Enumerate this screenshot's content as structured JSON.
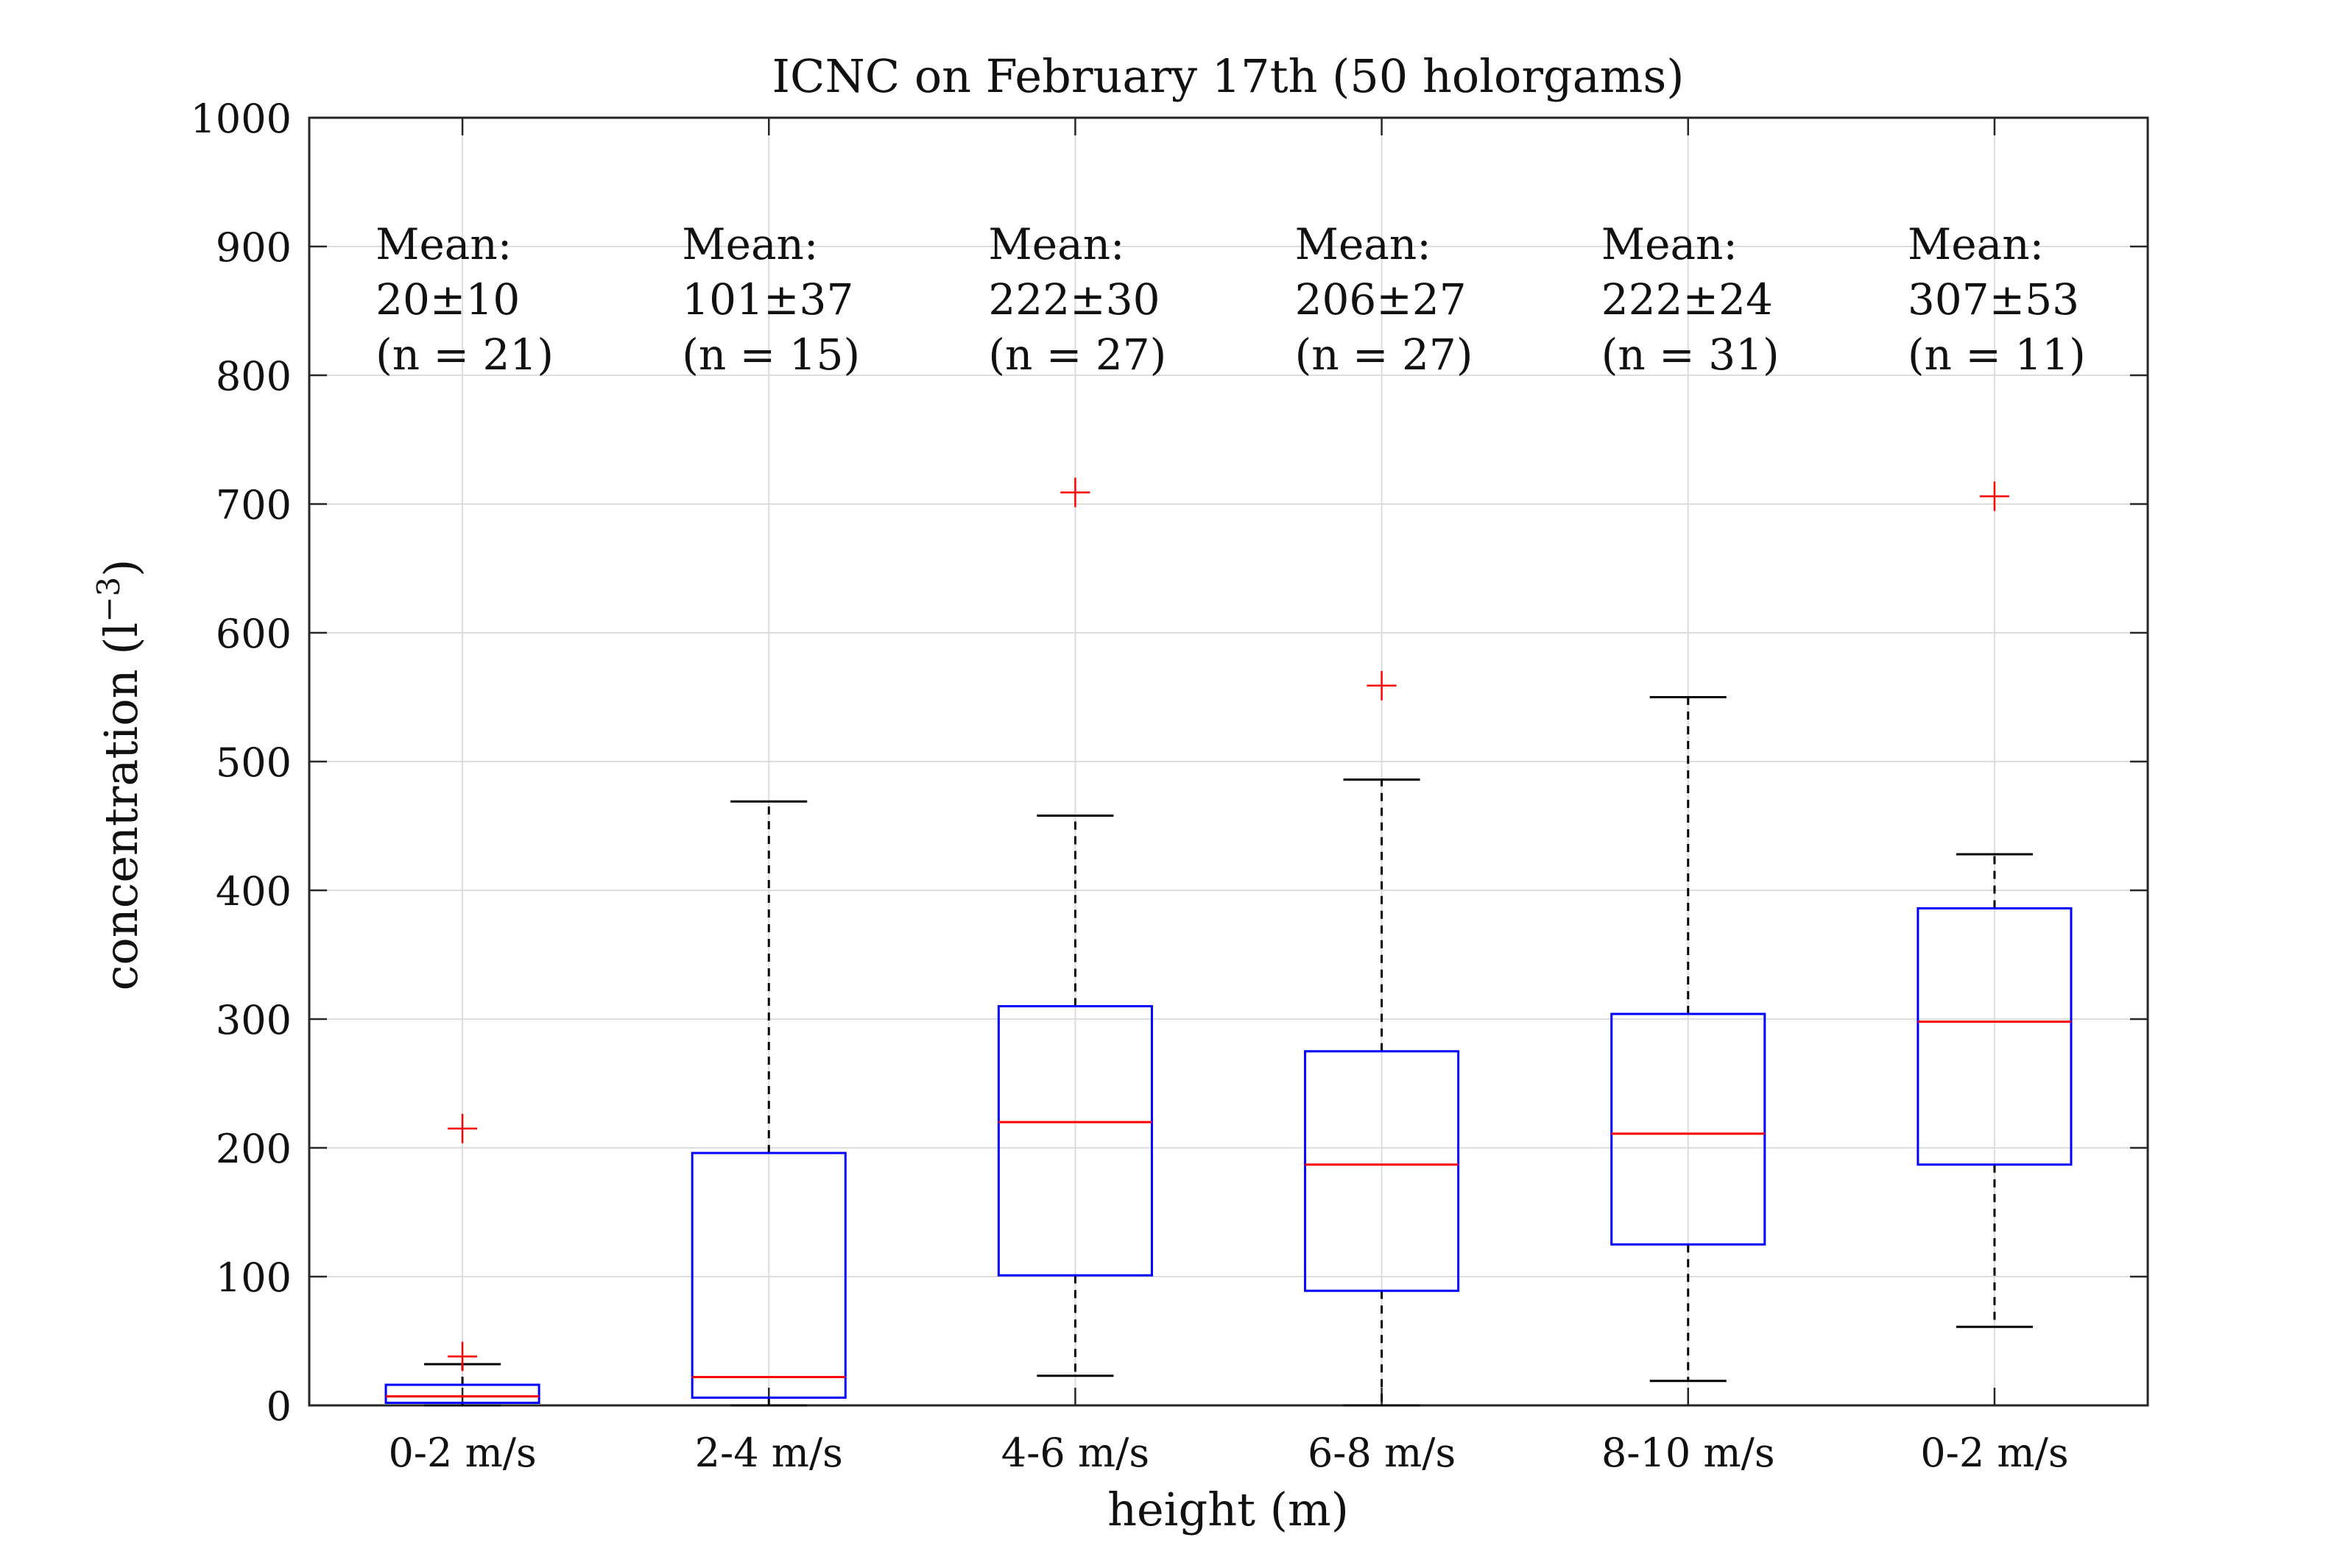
{
  "chart_data": {
    "type": "box",
    "title": "ICNC on February 17th (50 holorgams)",
    "xlabel": "height (m)",
    "ylabel": "concentration (l",
    "ylabel_sup": "−3",
    "ylabel_close": ")",
    "ylim": [
      0,
      1000
    ],
    "yticks": [
      0,
      100,
      200,
      300,
      400,
      500,
      600,
      700,
      800,
      900,
      1000
    ],
    "grid": true,
    "categories": [
      "0-2 m/s",
      "2-4 m/s",
      "4-6 m/s",
      "6-8 m/s",
      "8-10 m/s",
      "0-2 m/s"
    ],
    "boxes": [
      {
        "q1": 2,
        "median": 7,
        "q3": 16,
        "whisker_low": 0,
        "whisker_high": 32,
        "outliers": [
          38,
          215
        ],
        "mean_label": "Mean:",
        "mean_value": "20±10",
        "n_label": "(n = 21)"
      },
      {
        "q1": 6,
        "median": 22,
        "q3": 196,
        "whisker_low": 0,
        "whisker_high": 469,
        "outliers": [],
        "mean_label": "Mean:",
        "mean_value": "101±37",
        "n_label": "(n = 15)"
      },
      {
        "q1": 101,
        "median": 220,
        "q3": 310,
        "whisker_low": 23,
        "whisker_high": 458,
        "outliers": [
          709
        ],
        "mean_label": "Mean:",
        "mean_value": "222±30",
        "n_label": "(n = 27)"
      },
      {
        "q1": 89,
        "median": 187,
        "q3": 275,
        "whisker_low": 0,
        "whisker_high": 486,
        "outliers": [
          559
        ],
        "mean_label": "Mean:",
        "mean_value": "206±27",
        "n_label": "(n = 27)"
      },
      {
        "q1": 125,
        "median": 211,
        "q3": 304,
        "whisker_low": 19,
        "whisker_high": 550,
        "outliers": [],
        "mean_label": "Mean:",
        "mean_value": "222±24",
        "n_label": "(n = 31)"
      },
      {
        "q1": 187,
        "median": 298,
        "q3": 386,
        "whisker_low": 61,
        "whisker_high": 428,
        "outliers": [
          706
        ],
        "mean_label": "Mean:",
        "mean_value": "307±53",
        "n_label": "(n = 11)"
      }
    ],
    "colors": {
      "box": "#0000ff",
      "median": "#ff0000",
      "whisker": "#000000",
      "outlier": "#ff0000",
      "grid": "#dcdcdc",
      "axis": "#262626"
    }
  }
}
